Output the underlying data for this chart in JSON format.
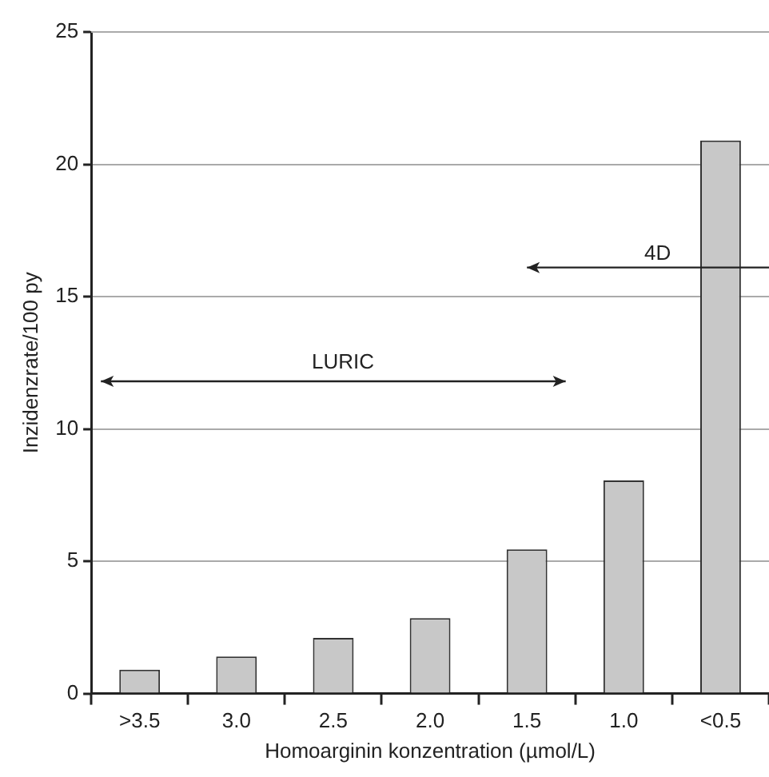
{
  "chart_data": {
    "type": "bar",
    "xlabel": "Homoarginin konzentration (µmol/L)",
    "ylabel": "Inzidenzrate/100 py",
    "categories": [
      ">3.5",
      "3.0",
      "2.5",
      "2.0",
      "1.5",
      "1.0",
      "<0.5"
    ],
    "values": [
      0.9,
      1.4,
      2.1,
      2.85,
      5.45,
      8.05,
      20.9
    ],
    "color": "#c8c8c8",
    "ylim": [
      0,
      25
    ],
    "yticks": [
      0,
      5,
      10,
      15,
      20,
      25
    ],
    "grid": "y",
    "legend": false,
    "annotations": [
      "LURIC",
      "4D"
    ]
  }
}
